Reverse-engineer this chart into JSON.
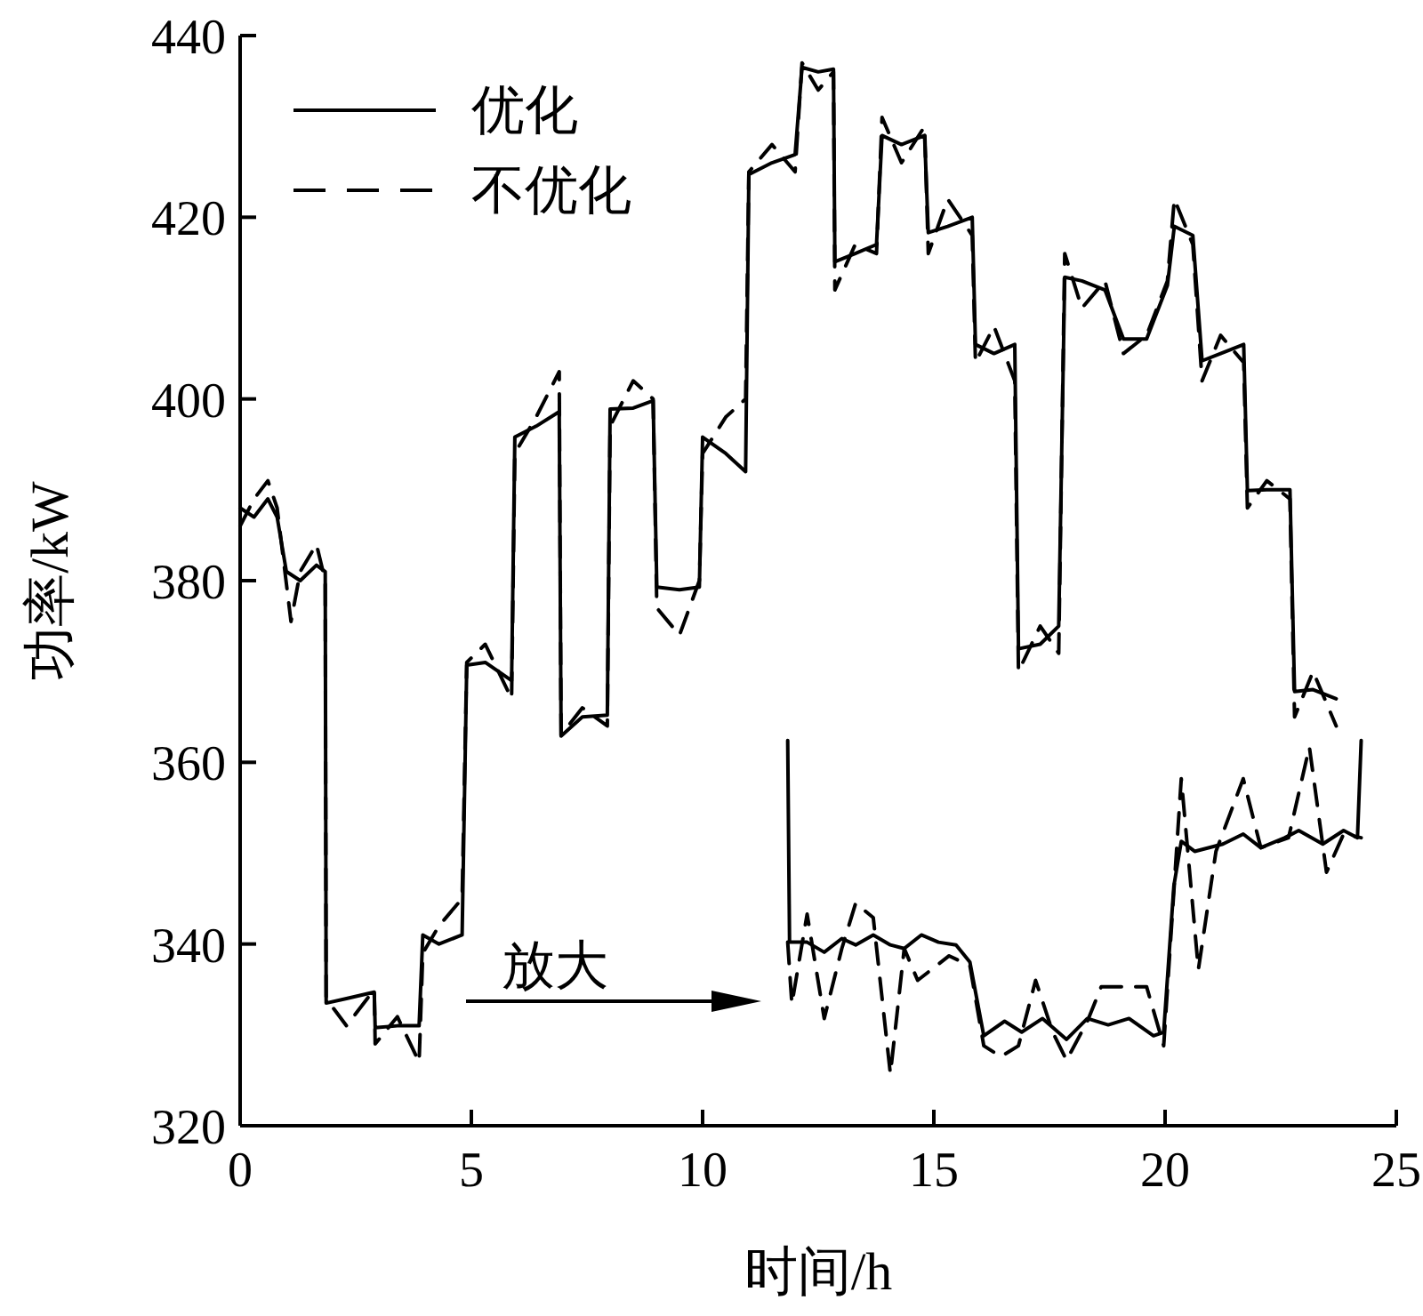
{
  "chart_data": {
    "type": "line",
    "xlabel": "时间/h",
    "ylabel": "功率/kW",
    "xlim": [
      0,
      25
    ],
    "ylim": [
      320,
      440
    ],
    "xticks": [
      0,
      5,
      10,
      15,
      20,
      25
    ],
    "yticks": [
      320,
      340,
      360,
      380,
      400,
      420,
      440
    ],
    "legend": "top left",
    "grid": false,
    "annotations": [
      "放大"
    ],
    "series": [
      {
        "name": "优化",
        "color": "#000000",
        "line_style": "solid",
        "x": [
          0,
          0.3,
          0.6,
          0.8,
          1.0,
          1.3,
          1.65,
          1.84,
          1.86,
          2.3,
          2.9,
          2.92,
          3.4,
          3.87,
          3.95,
          4.3,
          4.8,
          4.9,
          5.3,
          5.87,
          5.94,
          6.4,
          6.9,
          6.94,
          7.4,
          7.94,
          8.0,
          8.5,
          8.93,
          9.01,
          9.5,
          9.93,
          10.0,
          10.5,
          10.93,
          11.0,
          11.5,
          12.0,
          12.15,
          12.5,
          12.83,
          12.86,
          13.3,
          13.76,
          13.88,
          14.3,
          14.8,
          14.88,
          15.3,
          15.83,
          15.9,
          16.3,
          16.75,
          16.83,
          17.3,
          17.7,
          17.83,
          18.2,
          18.7,
          19.1,
          19.6,
          20.05,
          20.2,
          20.6,
          20.8,
          21.2,
          21.7,
          21.78,
          22.2,
          22.7,
          22.8,
          23.2,
          23.7
        ],
        "values": [
          388,
          387,
          389,
          387,
          381,
          380,
          381.7,
          381,
          333.5,
          334,
          334.7,
          330.8,
          331,
          331,
          341,
          340,
          341,
          370.7,
          371,
          369,
          395.8,
          397,
          398.6,
          362.9,
          365,
          365.2,
          398.9,
          399,
          399.8,
          379.3,
          379,
          379.3,
          395.8,
          394,
          392,
          424.7,
          426,
          426.9,
          436.5,
          436,
          436.3,
          415.1,
          416,
          417,
          429,
          428,
          429,
          418.3,
          419,
          420,
          406,
          405,
          406,
          372.5,
          373,
          375,
          413.4,
          413,
          412,
          406.6,
          406.6,
          412.5,
          419,
          418,
          404.2,
          405,
          406,
          389.9,
          390,
          390,
          367.8,
          368,
          367
        ]
      },
      {
        "name": "不优化",
        "color": "#000000",
        "line_style": "dashed",
        "x": [
          0,
          0.3,
          0.6,
          0.8,
          1.1,
          1.3,
          1.65,
          1.84,
          1.86,
          2.3,
          2.9,
          2.92,
          3.4,
          3.87,
          3.95,
          4.3,
          4.8,
          4.9,
          5.3,
          5.87,
          5.94,
          6.4,
          6.9,
          6.94,
          7.4,
          7.94,
          8.0,
          8.5,
          8.93,
          9.01,
          9.5,
          9.93,
          10.0,
          10.5,
          10.93,
          11.0,
          11.5,
          12.0,
          12.15,
          12.5,
          12.83,
          12.86,
          13.3,
          13.76,
          13.88,
          14.3,
          14.8,
          14.88,
          15.3,
          15.83,
          15.9,
          16.3,
          16.75,
          16.83,
          17.3,
          17.7,
          17.83,
          18.2,
          18.7,
          19.1,
          19.6,
          20.05,
          20.2,
          20.6,
          20.8,
          21.2,
          21.7,
          21.78,
          22.2,
          22.7,
          22.8,
          23.2,
          23.7
        ],
        "values": [
          386,
          389,
          391,
          388,
          375.5,
          381,
          384,
          380,
          334,
          331,
          335,
          329,
          332,
          327,
          339,
          342,
          345,
          371,
          373,
          367,
          394,
          398,
          403,
          363,
          366,
          364,
          397,
          402,
          400,
          377,
          374,
          380,
          394,
          398,
          400,
          425,
          428,
          425,
          437,
          434,
          436,
          412,
          417,
          416,
          431,
          426,
          430,
          416,
          422,
          418,
          404,
          408,
          402,
          370,
          375,
          372,
          416,
          410,
          413,
          405,
          407,
          413,
          422,
          417,
          402,
          407,
          404,
          388,
          391,
          389,
          365,
          370,
          364
        ]
      },
      {
        "color": "#000000",
        "line_style": "solid",
        "x": [
          11.84,
          11.88,
          12.26,
          12.63,
          13.01,
          13.31,
          13.69,
          14.06,
          14.36,
          14.73,
          15.1,
          15.48,
          15.78,
          16.08,
          16.53,
          16.9,
          17.35,
          17.87,
          18.32,
          18.77,
          19.22,
          19.75,
          19.97,
          20.19,
          20.35,
          20.64,
          21.25,
          21.69,
          22.07,
          22.59,
          22.89,
          23.41,
          23.86,
          24.16,
          24.24
        ],
        "values": [
          362.4,
          340.2,
          340.2,
          339.1,
          340.6,
          339.9,
          341.0,
          339.9,
          339.5,
          341.0,
          340.2,
          339.9,
          338.0,
          329.9,
          331.5,
          330.3,
          331.8,
          329.5,
          331.8,
          331.1,
          331.8,
          329.9,
          330.3,
          346.4,
          351.3,
          350.2,
          351.0,
          352.1,
          350.6,
          351.7,
          352.5,
          351.0,
          352.5,
          351.7,
          362.4
        ]
      },
      {
        "color": "#000000",
        "line_style": "dashed",
        "x": [
          11.84,
          11.93,
          12.26,
          12.63,
          13.01,
          13.31,
          13.69,
          14.06,
          14.36,
          14.65,
          15.33,
          15.78,
          16.08,
          16.45,
          16.83,
          17.2,
          17.57,
          17.87,
          18.32,
          18.62,
          19.6,
          19.97,
          20.35,
          20.72,
          21.1,
          21.69,
          22.07,
          22.67,
          23.12,
          23.49,
          23.86,
          24.24
        ],
        "values": [
          340.2,
          333.4,
          343.3,
          331.8,
          339.5,
          344.5,
          342.9,
          325.7,
          339.5,
          336.0,
          338.7,
          337.6,
          328.8,
          327.6,
          328.8,
          336.0,
          330.3,
          327.2,
          331.5,
          335.3,
          335.3,
          328.8,
          358.2,
          337.2,
          350.2,
          358.2,
          350.6,
          351.7,
          361.7,
          347.9,
          352.1,
          351.7
        ]
      }
    ]
  }
}
